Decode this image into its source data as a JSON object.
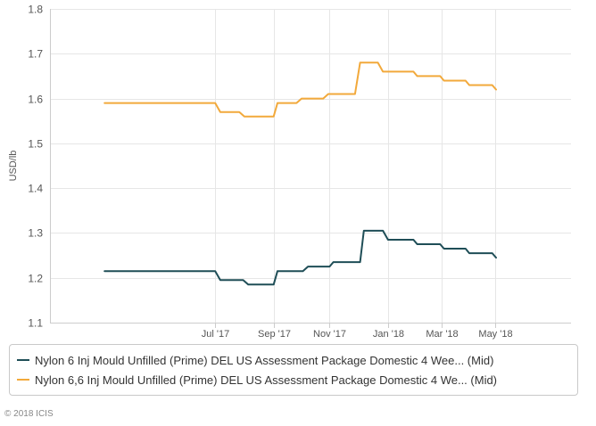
{
  "chart_data": {
    "type": "line",
    "title": "",
    "xlabel": "",
    "ylabel": "USD/lb",
    "ylim": [
      1.1,
      1.8
    ],
    "yticks": [
      "1.8",
      "1.7",
      "1.6",
      "1.5",
      "1.4",
      "1.3",
      "1.2",
      "1.1"
    ],
    "xlim": [
      0,
      41
    ],
    "xticks": [
      {
        "label": "Jul '17",
        "x": 13
      },
      {
        "label": "Sep '17",
        "x": 17.6
      },
      {
        "label": "Nov '17",
        "x": 22
      },
      {
        "label": "Jan '18",
        "x": 26.6
      },
      {
        "label": "Mar '18",
        "x": 30.8
      },
      {
        "label": "May '18",
        "x": 35
      }
    ],
    "series": [
      {
        "name": "Nylon 6 Inj Mould Unfilled (Prime) DEL US Assessment Package Domestic 4 Wee... (Mid)",
        "color": "#1f4e57",
        "points": [
          [
            4.3,
            1.215
          ],
          [
            13,
            1.215
          ],
          [
            13.4,
            1.195
          ],
          [
            15.2,
            1.195
          ],
          [
            15.6,
            1.185
          ],
          [
            17.6,
            1.185
          ],
          [
            17.9,
            1.215
          ],
          [
            19.9,
            1.215
          ],
          [
            20.3,
            1.225
          ],
          [
            22,
            1.225
          ],
          [
            22.3,
            1.235
          ],
          [
            24.4,
            1.235
          ],
          [
            24.7,
            1.305
          ],
          [
            26.2,
            1.305
          ],
          [
            26.6,
            1.285
          ],
          [
            28.6,
            1.285
          ],
          [
            28.9,
            1.275
          ],
          [
            30.7,
            1.275
          ],
          [
            31,
            1.265
          ],
          [
            32.7,
            1.265
          ],
          [
            33,
            1.255
          ],
          [
            34.8,
            1.255
          ],
          [
            35.1,
            1.245
          ]
        ]
      },
      {
        "name": "Nylon 6,6 Inj Mould Unfilled (Prime) DEL US Assessment Package Domestic 4 We... (Mid)",
        "color": "#f2a93b",
        "points": [
          [
            4.3,
            1.59
          ],
          [
            13,
            1.59
          ],
          [
            13.4,
            1.57
          ],
          [
            14.9,
            1.57
          ],
          [
            15.3,
            1.56
          ],
          [
            17.6,
            1.56
          ],
          [
            17.9,
            1.59
          ],
          [
            19.4,
            1.59
          ],
          [
            19.8,
            1.6
          ],
          [
            21.5,
            1.6
          ],
          [
            21.9,
            1.61
          ],
          [
            24,
            1.61
          ],
          [
            24.4,
            1.68
          ],
          [
            25.8,
            1.68
          ],
          [
            26.2,
            1.66
          ],
          [
            28.6,
            1.66
          ],
          [
            28.9,
            1.65
          ],
          [
            30.7,
            1.65
          ],
          [
            31,
            1.64
          ],
          [
            32.7,
            1.64
          ],
          [
            33,
            1.63
          ],
          [
            34.8,
            1.63
          ],
          [
            35.1,
            1.62
          ]
        ]
      }
    ],
    "legend_position": "bottom",
    "grid": true
  },
  "copyright": "© 2018 ICIS"
}
